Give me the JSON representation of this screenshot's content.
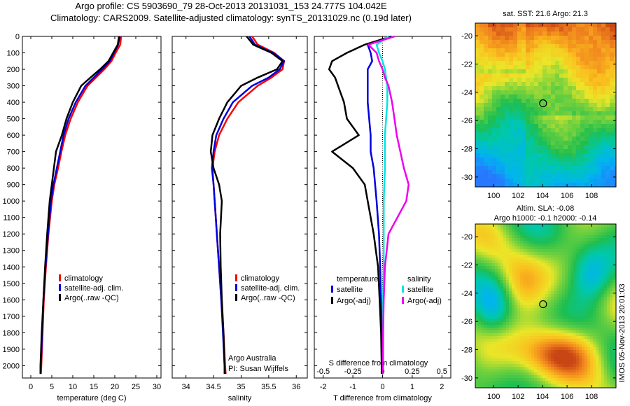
{
  "header": {
    "line1": "Argo profile: CS 5903690_79 28-Oct-2013 20131031_153 24.777S 104.042E",
    "line2": "Climatology: CARS2009. Satellite-adjusted climatology: synTS_20131029.nc (0.19d later)"
  },
  "side_text": "IMOS 05-Nov-2013 20:01:03",
  "colors": {
    "climatology": "#ff0000",
    "satellite": "#0000dd",
    "argo": "#000000",
    "sat_salinity": "#00e5e5",
    "argo_salinity": "#ee00ee"
  },
  "chart_data": [
    {
      "type": "line",
      "xlabel": "temperature (deg C)",
      "xlim": [
        -2,
        31
      ],
      "xticks": [
        "0",
        "5",
        "10",
        "15",
        "20",
        "25",
        "30"
      ],
      "xtick_values": [
        0,
        5,
        10,
        15,
        20,
        25,
        30
      ],
      "ylim": [
        0,
        2075
      ],
      "yticks": [
        "0",
        "100",
        "200",
        "300",
        "400",
        "500",
        "600",
        "700",
        "800",
        "900",
        "1000",
        "1100",
        "1200",
        "1300",
        "1400",
        "1500",
        "1600",
        "1700",
        "1800",
        "1900",
        "2000"
      ],
      "legend": [
        "climatology",
        "satellite-adj. clim.",
        "Argo(..raw -QC)"
      ],
      "depth": [
        0,
        50,
        100,
        150,
        200,
        250,
        300,
        400,
        500,
        600,
        700,
        800,
        900,
        1000,
        1200,
        1400,
        1600,
        1800,
        2000,
        2050
      ],
      "series": [
        {
          "name": "climatology",
          "color": "#ff0000",
          "values": [
            21.5,
            21.3,
            20.2,
            19.2,
            17.5,
            15.5,
            13.5,
            11.2,
            9.5,
            8.2,
            7.3,
            6.5,
            5.6,
            5.0,
            4.2,
            3.6,
            3.1,
            2.8,
            2.5,
            2.4
          ]
        },
        {
          "name": "satellite-adj. clim.",
          "color": "#0000dd",
          "values": [
            21.2,
            20.8,
            19.8,
            18.8,
            17.0,
            15.0,
            13.0,
            10.7,
            9.0,
            7.8,
            7.0,
            6.2,
            5.4,
            4.8,
            4.1,
            3.5,
            3.0,
            2.7,
            2.4,
            2.35
          ]
        },
        {
          "name": "Argo(..raw -QC)",
          "color": "#000000",
          "values": [
            21.0,
            20.7,
            19.6,
            18.5,
            16.5,
            14.2,
            12.0,
            10.0,
            8.5,
            7.4,
            6.0,
            5.5,
            5.0,
            4.5,
            3.9,
            3.4,
            3.0,
            2.6,
            2.3,
            2.3
          ]
        }
      ]
    },
    {
      "type": "line",
      "xlabel": "salinity",
      "xlim": [
        33.75,
        36.2
      ],
      "xticks": [
        "34",
        "34.5",
        "35",
        "35.5",
        "36"
      ],
      "xtick_values": [
        34,
        34.5,
        35,
        35.5,
        36
      ],
      "ylim": [
        0,
        2075
      ],
      "legend": [
        "climatology",
        "satellite-adj. clim.",
        "Argo(..raw -QC)"
      ],
      "annotation": [
        "Argo Australia",
        "PI: Susan Wijffels"
      ],
      "depth": [
        0,
        50,
        100,
        150,
        200,
        250,
        300,
        400,
        500,
        600,
        700,
        800,
        900,
        1000,
        1200,
        1400,
        1600,
        1800,
        2000,
        2050
      ],
      "series": [
        {
          "name": "climatology",
          "color": "#ff0000",
          "values": [
            35.2,
            35.3,
            35.6,
            35.78,
            35.75,
            35.55,
            35.3,
            34.95,
            34.75,
            34.6,
            34.52,
            34.48,
            34.5,
            34.52,
            34.56,
            34.6,
            34.64,
            34.68,
            34.71,
            34.72
          ]
        },
        {
          "name": "satellite-adj. clim.",
          "color": "#0000dd",
          "values": [
            35.15,
            35.25,
            35.58,
            35.78,
            35.7,
            35.5,
            35.2,
            34.85,
            34.68,
            34.55,
            34.5,
            34.47,
            34.5,
            34.52,
            34.56,
            34.6,
            34.64,
            34.67,
            34.7,
            34.71
          ]
        },
        {
          "name": "Argo(..raw -QC)",
          "color": "#000000",
          "values": [
            35.1,
            35.22,
            35.55,
            35.75,
            35.65,
            35.3,
            35.0,
            34.75,
            34.6,
            34.48,
            34.45,
            34.5,
            34.6,
            34.65,
            34.62,
            34.63,
            34.65,
            34.68,
            34.7,
            34.7
          ]
        }
      ]
    },
    {
      "type": "line",
      "xlabel": "T difference from climatology",
      "xlabel2": "S difference from climatology",
      "xlim": [
        -2.3,
        2.3
      ],
      "xticks": [
        "-2",
        "-1",
        "0",
        "1",
        "2"
      ],
      "xtick_values": [
        -2,
        -1,
        0,
        1,
        2
      ],
      "s_ticks": [
        "-0.5",
        "-0.25",
        "0",
        "0.25",
        "0.5"
      ],
      "s_tick_values": [
        -0.5,
        -0.25,
        0,
        0.25,
        0.5
      ],
      "ylim": [
        0,
        2075
      ],
      "legend_temperature_title": "temperature",
      "legend_salinity_title": "salinity",
      "legend_temperature": [
        "satellite",
        "Argo(-adj)"
      ],
      "legend_salinity": [
        "satellite",
        "Argo(-adj)"
      ],
      "depth": [
        0,
        50,
        100,
        150,
        200,
        250,
        300,
        400,
        500,
        600,
        700,
        800,
        900,
        1000,
        1200,
        1400,
        1600,
        1800,
        2000,
        2050
      ],
      "series": [
        {
          "name": "T satellite",
          "color": "#0000dd",
          "values": [
            0.3,
            -0.5,
            -0.4,
            -0.35,
            -0.5,
            -0.5,
            -0.5,
            -0.5,
            -0.45,
            -0.4,
            -0.4,
            -0.3,
            -0.25,
            -0.2,
            -0.12,
            -0.08,
            -0.05,
            -0.03,
            -0.02,
            -0.02
          ]
        },
        {
          "name": "T Argo(-adj)",
          "color": "#000000",
          "values": [
            0.3,
            -0.6,
            -1.2,
            -1.7,
            -1.8,
            -1.6,
            -1.5,
            -1.3,
            -1.2,
            -0.8,
            -1.7,
            -1.0,
            -0.6,
            -0.5,
            -0.3,
            -0.15,
            -0.1,
            -0.05,
            -0.03,
            -0.03
          ]
        },
        {
          "name": "S satellite",
          "color": "#00e5e5",
          "values": [
            0.05,
            -0.05,
            -0.03,
            0.0,
            0.02,
            0.03,
            0.04,
            0.04,
            0.03,
            0.02,
            0.02,
            0.02,
            0.015,
            0.01,
            0.01,
            0.01,
            0.005,
            0.005,
            0.005,
            0.005
          ]
        },
        {
          "name": "S Argo(-adj)",
          "color": "#ee00ee",
          "values": [
            0.1,
            -0.12,
            -0.05,
            -0.03,
            0.0,
            0.02,
            0.05,
            0.08,
            0.1,
            0.12,
            0.15,
            0.18,
            0.22,
            0.2,
            0.05,
            0.02,
            0.01,
            0.005,
            0.003,
            0.003
          ]
        }
      ]
    },
    {
      "type": "heatmap",
      "title": "sat. SST: 21.6 Argo: 21.3",
      "xticks": [
        "100",
        "102",
        "104",
        "106",
        "108"
      ],
      "xtick_values": [
        100,
        102,
        104,
        106,
        108
      ],
      "yticks": [
        "-20",
        "-22",
        "-24",
        "-26",
        "-28",
        "-30"
      ],
      "ytick_values": [
        -20,
        -22,
        -24,
        -26,
        -28,
        -30
      ],
      "xlim": [
        98.5,
        110
      ],
      "ylim": [
        -30.7,
        -19.1
      ],
      "marker": [
        104.04,
        -24.78
      ]
    },
    {
      "type": "heatmap",
      "title_lines": [
        "Altim. SLA: -0.08",
        "Argo h1000: -0.1 h2000: -0.14"
      ],
      "xticks": [
        "100",
        "102",
        "104",
        "106",
        "108"
      ],
      "xtick_values": [
        100,
        102,
        104,
        106,
        108
      ],
      "yticks": [
        "-20",
        "-22",
        "-24",
        "-26",
        "-28",
        "-30"
      ],
      "ytick_values": [
        -20,
        -22,
        -24,
        -26,
        -28,
        -30
      ],
      "xlim": [
        98.5,
        110
      ],
      "ylim": [
        -30.7,
        -19.1
      ],
      "marker": [
        104.04,
        -24.78
      ]
    }
  ]
}
